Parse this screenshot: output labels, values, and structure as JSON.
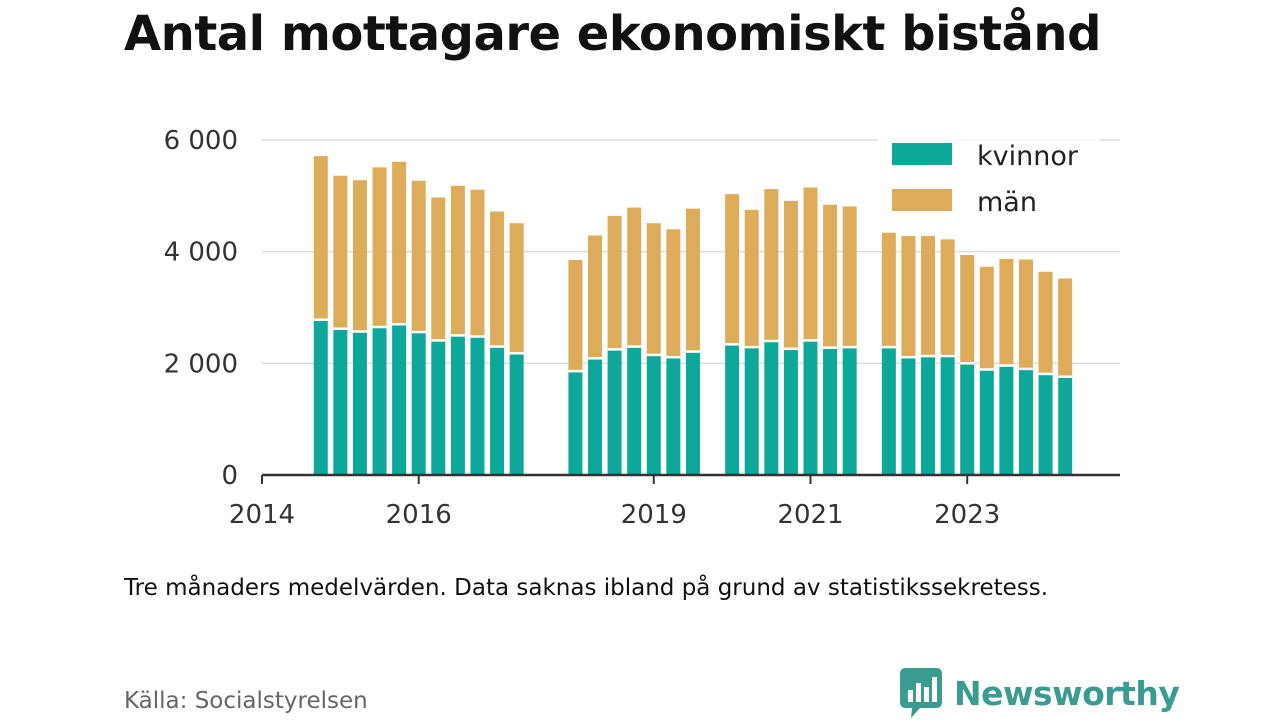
{
  "title": "Antal mottagare ekonomiskt bistånd",
  "note": "Tre månaders medelvärden. Data saknas ibland på grund av statistikssekretess.",
  "source": "Källa: Socialstyrelsen",
  "brand": {
    "name": "Newsworthy",
    "icon": "newsworthy-logo-icon"
  },
  "colors": {
    "kvinnor": "#0ea89a",
    "man": "#dcac5a",
    "grid": "#dddddd",
    "axis": "#333333"
  },
  "chart_data": {
    "type": "bar",
    "stacked": true,
    "ylim": [
      0,
      6000
    ],
    "yticks": [
      0,
      2000,
      4000,
      6000
    ],
    "ytick_labels": [
      "0",
      "2 000",
      "4 000",
      "6 000"
    ],
    "xlim": [
      2014.0,
      2024.95
    ],
    "xticks": [
      2014.0,
      2016.0,
      2019.0,
      2021.0,
      2023.0
    ],
    "xtick_labels": [
      "2014",
      "2016",
      "2019",
      "2021",
      "2023"
    ],
    "legend": {
      "position": "top-right",
      "entries": [
        "kvinnor",
        "män"
      ]
    },
    "grid": true,
    "x": [
      2014.75,
      2015.0,
      2015.25,
      2015.5,
      2015.75,
      2016.0,
      2016.25,
      2016.5,
      2016.75,
      2017.0,
      2017.25,
      2018.0,
      2018.25,
      2018.5,
      2018.75,
      2019.0,
      2019.25,
      2019.5,
      2020.0,
      2020.25,
      2020.5,
      2020.75,
      2021.0,
      2021.25,
      2021.5,
      2022.0,
      2022.25,
      2022.5,
      2022.75,
      2023.0,
      2023.25,
      2023.5,
      2023.75,
      2024.0,
      2024.25
    ],
    "series": [
      {
        "name": "kvinnor",
        "values": [
          2780,
          2620,
          2570,
          2650,
          2700,
          2560,
          2410,
          2500,
          2480,
          2300,
          2180,
          1860,
          2090,
          2250,
          2300,
          2150,
          2110,
          2210,
          2340,
          2290,
          2400,
          2260,
          2410,
          2280,
          2290,
          2290,
          2110,
          2130,
          2130,
          2000,
          1890,
          1960,
          1900,
          1810,
          1760
        ]
      },
      {
        "name": "män",
        "values": [
          2930,
          2740,
          2710,
          2860,
          2910,
          2710,
          2560,
          2680,
          2630,
          2420,
          2330,
          1990,
          2200,
          2390,
          2490,
          2360,
          2290,
          2560,
          2690,
          2460,
          2720,
          2650,
          2740,
          2560,
          2520,
          2050,
          2170,
          2150,
          2090,
          1940,
          1840,
          1910,
          1960,
          1830,
          1760
        ]
      }
    ]
  }
}
